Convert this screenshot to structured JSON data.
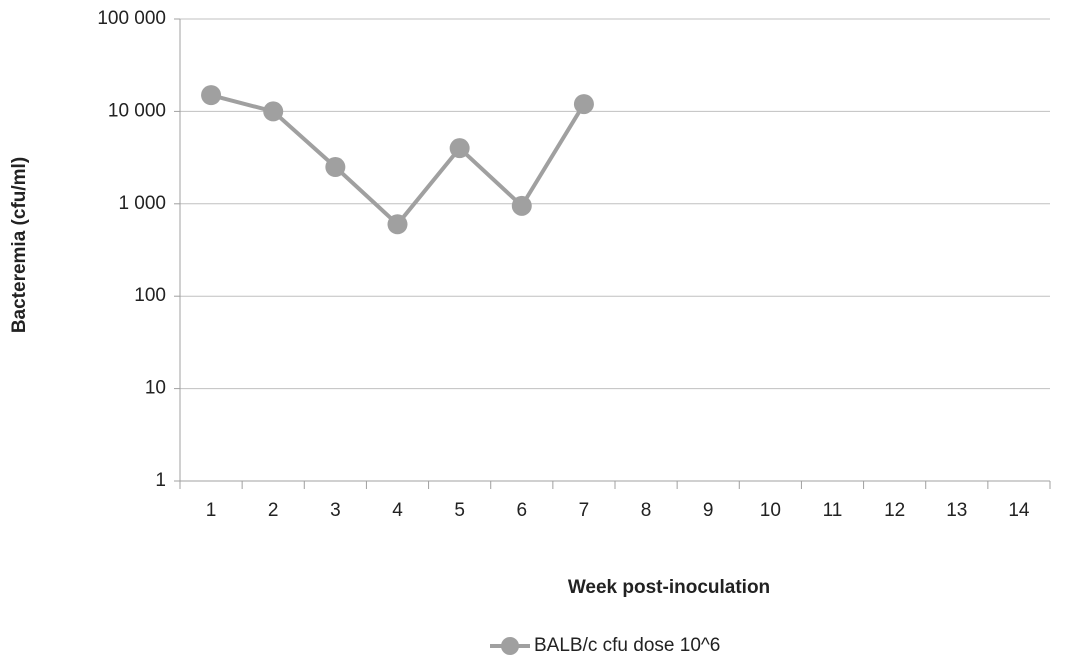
{
  "chart_data": {
    "type": "line",
    "x_label": "Week post-inoculation",
    "y_label": "Bacteremia (cfu/ml)",
    "categories": [
      "1",
      "2",
      "3",
      "4",
      "5",
      "6",
      "7",
      "8",
      "9",
      "10",
      "11",
      "12",
      "13",
      "14"
    ],
    "series": [
      {
        "name": "BALB/c cfu dose 10^6",
        "color": "#a0a0a0",
        "values": [
          15000,
          10000,
          2500,
          600,
          4000,
          950,
          12000,
          null,
          null,
          null,
          null,
          null,
          null,
          null
        ]
      }
    ],
    "ylim": [
      1,
      100000
    ],
    "log_y": true,
    "yticks": [
      1,
      10,
      100,
      {
        "value": 1000,
        "label": "1 000"
      },
      {
        "value": 10000,
        "label": "10 000"
      },
      {
        "value": 100000,
        "label": "100 000"
      }
    ],
    "grid": true,
    "legend": "bottom"
  }
}
